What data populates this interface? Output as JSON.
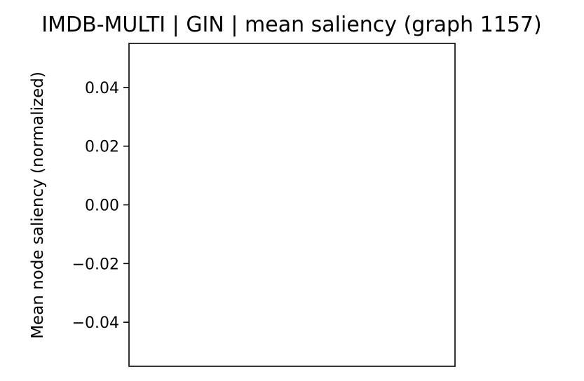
{
  "chart_data": {
    "type": "bar",
    "title": "IMDB-MULTI | GIN | mean saliency (graph 1157)",
    "ylabel": "Mean node saliency (normalized)",
    "xlabel": "",
    "categories": [],
    "values": [],
    "ylim": [
      -0.055,
      0.055
    ],
    "yticks": [
      0.04,
      0.02,
      0.0,
      -0.02,
      -0.04
    ],
    "ytick_labels": [
      "0.04",
      "0.02",
      "0.00",
      "−0.02",
      "−0.04"
    ],
    "xticks": [],
    "grid": false,
    "legend": "none"
  }
}
